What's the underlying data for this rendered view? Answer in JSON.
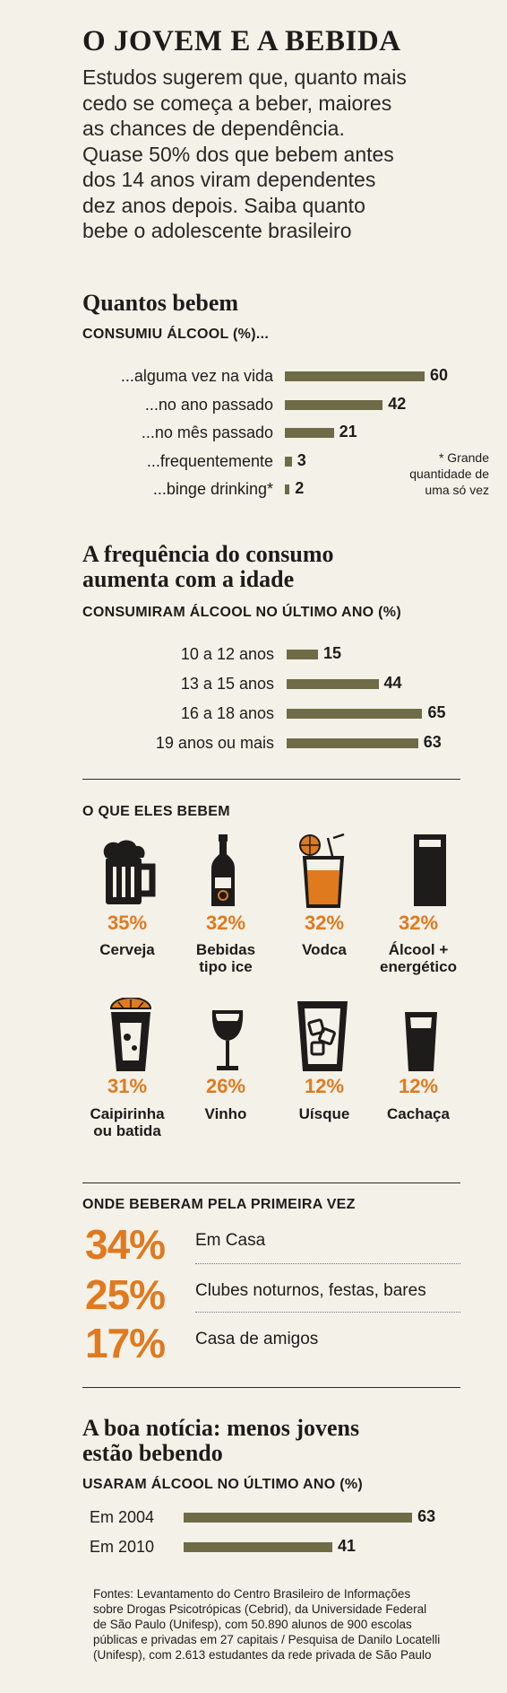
{
  "title": "O JOVEM E A BEBIDA",
  "intro": [
    "Estudos sugerem que, quanto mais",
    "cedo se começa a beber, maiores",
    "as chances de dependência.",
    "Quase 50% dos que bebem antes",
    "dos 14 anos viram dependentes",
    "dez anos depois. Saiba quanto",
    "bebe o adolescente brasileiro"
  ],
  "colors": {
    "bar": "#6e6b47",
    "accent": "#e07a1e",
    "text": "#1e1c1a"
  },
  "chart_data": [
    {
      "type": "bar",
      "title": "Quantos bebem",
      "subtitle": "CONSUMIU ÁLCOOL (%)...",
      "categories": [
        "...alguma vez na vida",
        "...no ano passado",
        "...no mês passado",
        "...frequentemente",
        "...binge drinking*"
      ],
      "values": [
        60,
        42,
        21,
        3,
        2
      ],
      "note": [
        "* Grande",
        "quantidade de",
        "uma só vez"
      ]
    },
    {
      "type": "bar",
      "title": "A frequência do consumo aumenta com a idade",
      "title_lines": [
        "A frequência do consumo",
        "aumenta com a idade"
      ],
      "subtitle": "CONSUMIRAM ÁLCOOL NO ÚLTIMO ANO (%)",
      "categories": [
        "10 a 12 anos",
        "13 a 15 anos",
        "16 a 18 anos",
        "19 anos ou mais"
      ],
      "values": [
        15,
        44,
        65,
        63
      ]
    },
    {
      "type": "table",
      "title": "O QUE ELES BEBEM",
      "items": [
        {
          "icon": "beer-mug-icon",
          "label": "Cerveja",
          "percent": "35%",
          "value": 35
        },
        {
          "icon": "ice-bottle-icon",
          "label": "Bebidas tipo ice",
          "label_lines": [
            "Bebidas",
            "tipo ice"
          ],
          "percent": "32%",
          "value": 32
        },
        {
          "icon": "vodka-glass-icon",
          "label": "Vodca",
          "percent": "32%",
          "value": 32
        },
        {
          "icon": "energy-drink-glass-icon",
          "label": "Álcool + energético",
          "label_lines": [
            "Álcool +",
            "energético"
          ],
          "percent": "32%",
          "value": 32
        },
        {
          "icon": "caipirinha-glass-icon",
          "label": "Caipirinha ou batida",
          "label_lines": [
            "Caipirinha",
            "ou batida"
          ],
          "percent": "31%",
          "value": 31
        },
        {
          "icon": "wine-glass-icon",
          "label": "Vinho",
          "percent": "26%",
          "value": 26
        },
        {
          "icon": "whisky-glass-icon",
          "label": "Uísque",
          "percent": "12%",
          "value": 12
        },
        {
          "icon": "shot-glass-icon",
          "label": "Cachaça",
          "percent": "12%",
          "value": 12
        }
      ]
    },
    {
      "type": "table",
      "title": "ONDE BEBERAM PELA PRIMEIRA VEZ",
      "items": [
        {
          "percent": "34%",
          "value": 34,
          "label": "Em Casa"
        },
        {
          "percent": "25%",
          "value": 25,
          "label": "Clubes noturnos, festas, bares"
        },
        {
          "percent": "17%",
          "value": 17,
          "label": "Casa de amigos"
        }
      ]
    },
    {
      "type": "bar",
      "title": "A boa notícia: menos jovens estão bebendo",
      "title_lines": [
        "A boa notícia: menos jovens",
        "estão bebendo"
      ],
      "subtitle": "USARAM ÁLCOOL NO ÚLTIMO ANO (%)",
      "categories": [
        "Em 2004",
        "Em 2010"
      ],
      "values": [
        63,
        41
      ]
    }
  ],
  "sources": [
    "Fontes: Levantamento do Centro Brasileiro de Informações",
    "sobre Drogas Psicotrópicas (Cebrid), da Universidade Federal",
    "de São Paulo (Unifesp), com 50.890 alunos de 900 escolas",
    "públicas e privadas em 27 capitais / Pesquisa de Danilo Locatelli",
    "(Unifesp), com 2.613 estudantes da rede privada de São Paulo"
  ]
}
